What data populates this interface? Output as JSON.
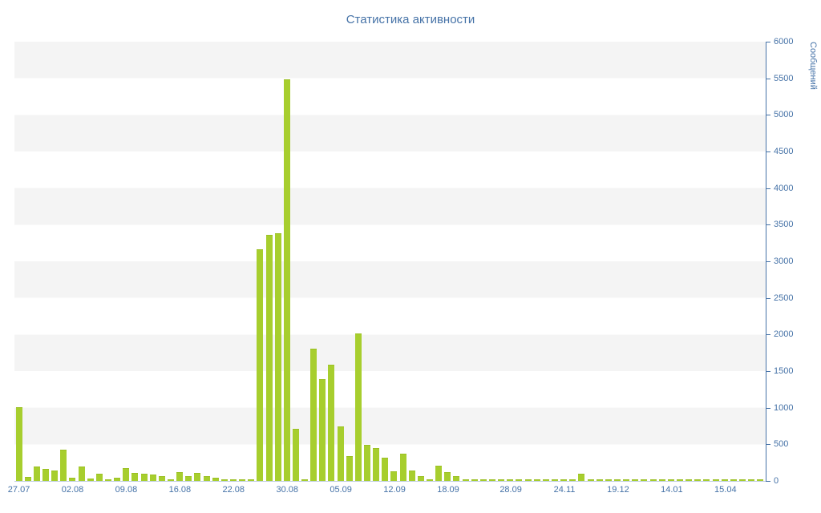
{
  "chart_data": {
    "type": "bar",
    "title": "Статистика активности",
    "ylabel": "Сообщений",
    "xlabel": "",
    "ylim": [
      0,
      6000
    ],
    "ytick_step": 500,
    "yticks": [
      0,
      500,
      1000,
      1500,
      2000,
      2500,
      3000,
      3500,
      4000,
      4500,
      5000,
      5500,
      6000
    ],
    "x_ticks": [
      {
        "index": 0,
        "label": "27.07"
      },
      {
        "index": 6,
        "label": "02.08"
      },
      {
        "index": 12,
        "label": "09.08"
      },
      {
        "index": 18,
        "label": "16.08"
      },
      {
        "index": 24,
        "label": "22.08"
      },
      {
        "index": 30,
        "label": "30.08"
      },
      {
        "index": 36,
        "label": "05.09"
      },
      {
        "index": 42,
        "label": "12.09"
      },
      {
        "index": 48,
        "label": "18.09"
      },
      {
        "index": 55,
        "label": "28.09"
      },
      {
        "index": 61,
        "label": "24.11"
      },
      {
        "index": 67,
        "label": "19.12"
      },
      {
        "index": 73,
        "label": "14.01"
      },
      {
        "index": 79,
        "label": "15.04"
      }
    ],
    "values": [
      1000,
      40,
      190,
      150,
      130,
      420,
      30,
      190,
      25,
      90,
      15,
      30,
      160,
      100,
      90,
      80,
      60,
      15,
      110,
      50,
      100,
      60,
      30,
      10,
      15,
      10,
      5,
      3150,
      3350,
      3370,
      5480,
      700,
      10,
      1800,
      1380,
      1580,
      730,
      330,
      2000,
      480,
      440,
      310,
      120,
      360,
      130,
      60,
      15,
      200,
      110,
      50,
      15,
      10,
      8,
      5,
      8,
      5,
      5,
      5,
      5,
      5,
      5,
      5,
      5,
      90,
      5,
      5,
      5,
      5,
      5,
      5,
      5,
      5,
      5,
      5,
      5,
      5,
      5,
      5,
      5,
      5,
      5,
      5,
      5,
      5
    ],
    "bar_color": "#a7ce2e",
    "band_color": "#f4f4f4",
    "axis_text_color": "#4572a7",
    "grid": "horizontal-bands",
    "legend": "none"
  }
}
